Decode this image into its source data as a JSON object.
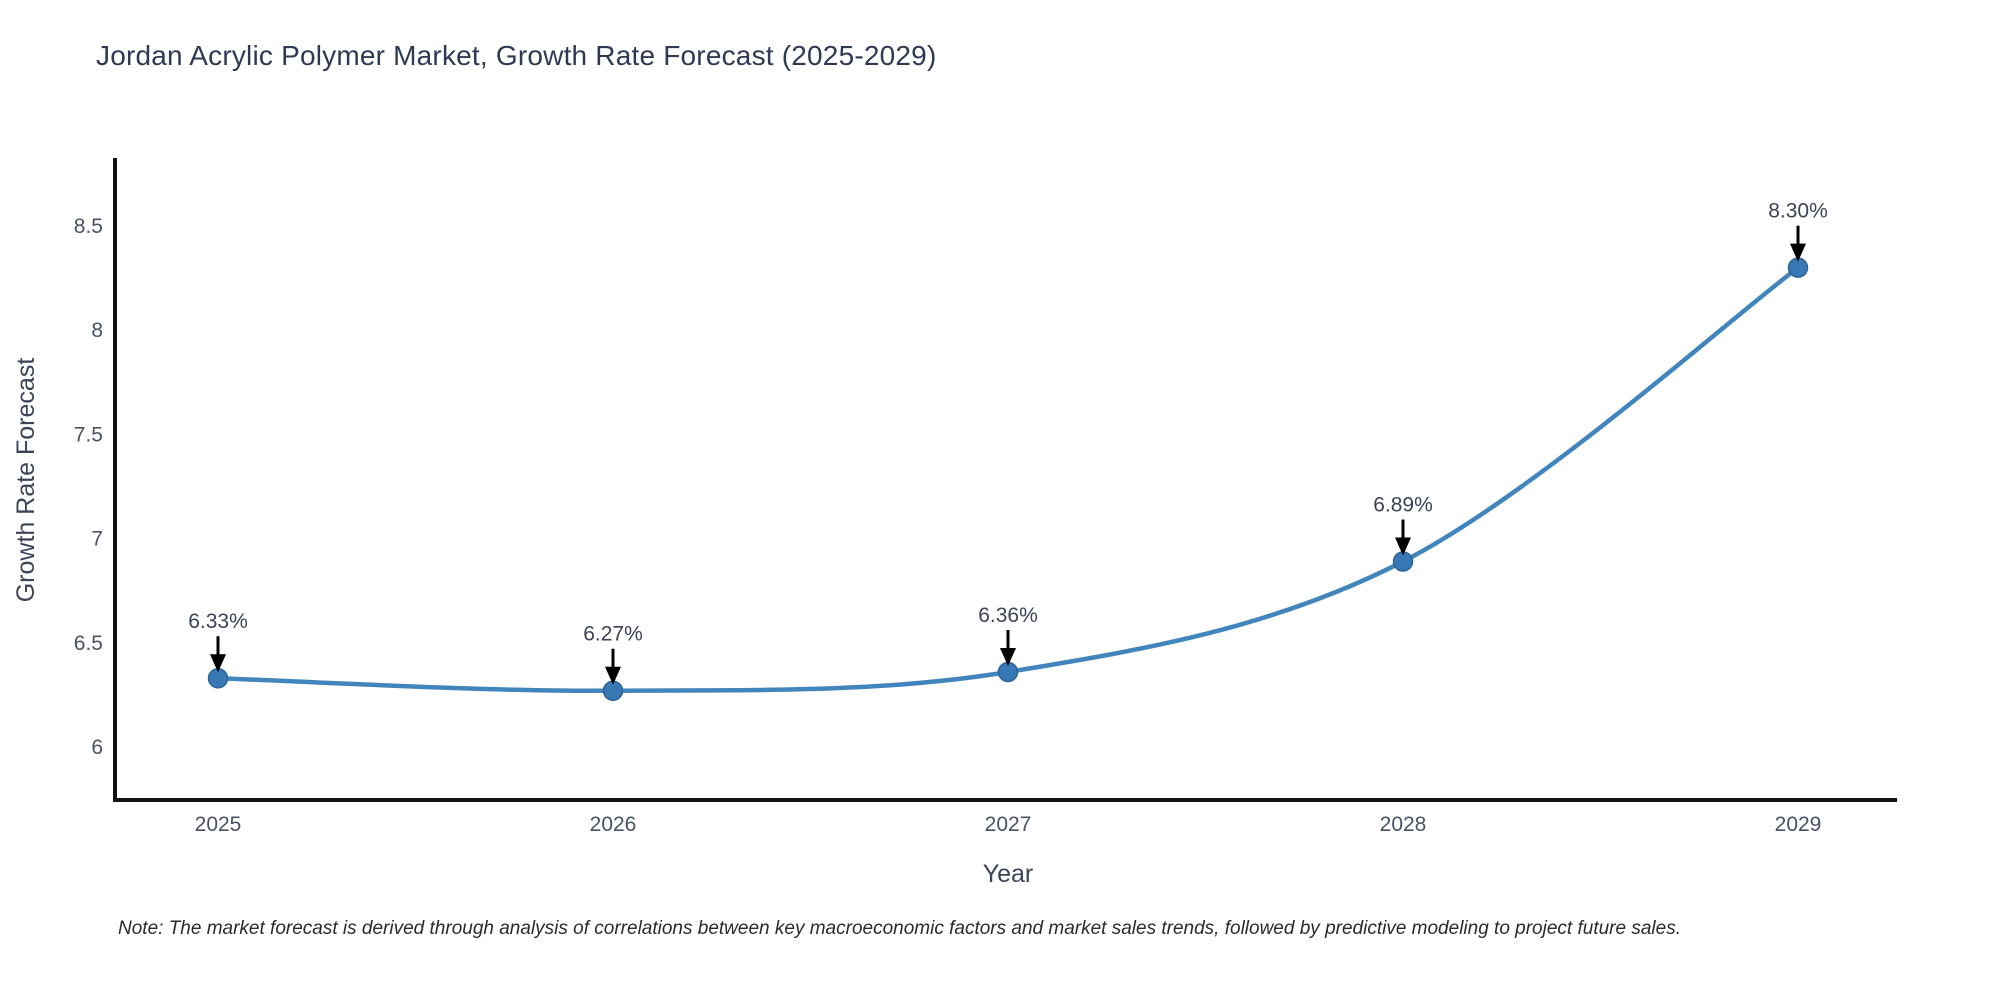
{
  "chart_data": {
    "type": "line",
    "title": "Jordan Acrylic Polymer Market, Growth Rate Forecast (2025-2029)",
    "xlabel": "Year",
    "ylabel": "Growth Rate Forecast",
    "x": [
      2025,
      2026,
      2027,
      2028,
      2029
    ],
    "series": [
      {
        "name": "Growth Rate Forecast",
        "values": [
          6.33,
          6.27,
          6.36,
          6.89,
          8.3
        ],
        "point_labels": [
          "6.33%",
          "6.27%",
          "6.36%",
          "6.89%",
          "8.30%"
        ]
      }
    ],
    "x_tick_labels": [
      "2025",
      "2026",
      "2027",
      "2028",
      "2029"
    ],
    "y_ticks": [
      6,
      6.5,
      7,
      7.5,
      8,
      8.5
    ],
    "y_tick_labels": [
      "6",
      "6.5",
      "7",
      "7.5",
      "8",
      "8.5"
    ],
    "ylim": [
      5.75,
      8.83
    ],
    "grid": false,
    "legend": "none",
    "line_shape": "spline",
    "colors": {
      "line": "#4285bd",
      "marker": "#3878b4",
      "marker_edge": "#2d6397",
      "axis_line": "#121212",
      "tick_label": "#4a5164",
      "axis_title": "#3b4457",
      "annotation_text": "#3c4257",
      "annotation_arrow": "#000000",
      "title": "#2e3a53",
      "background": "#ffffff"
    }
  },
  "note": {
    "text": "Note: The market forecast is derived through analysis of correlations between key macroeconomic factors and market sales trends, followed by predictive modeling to project future sales."
  }
}
